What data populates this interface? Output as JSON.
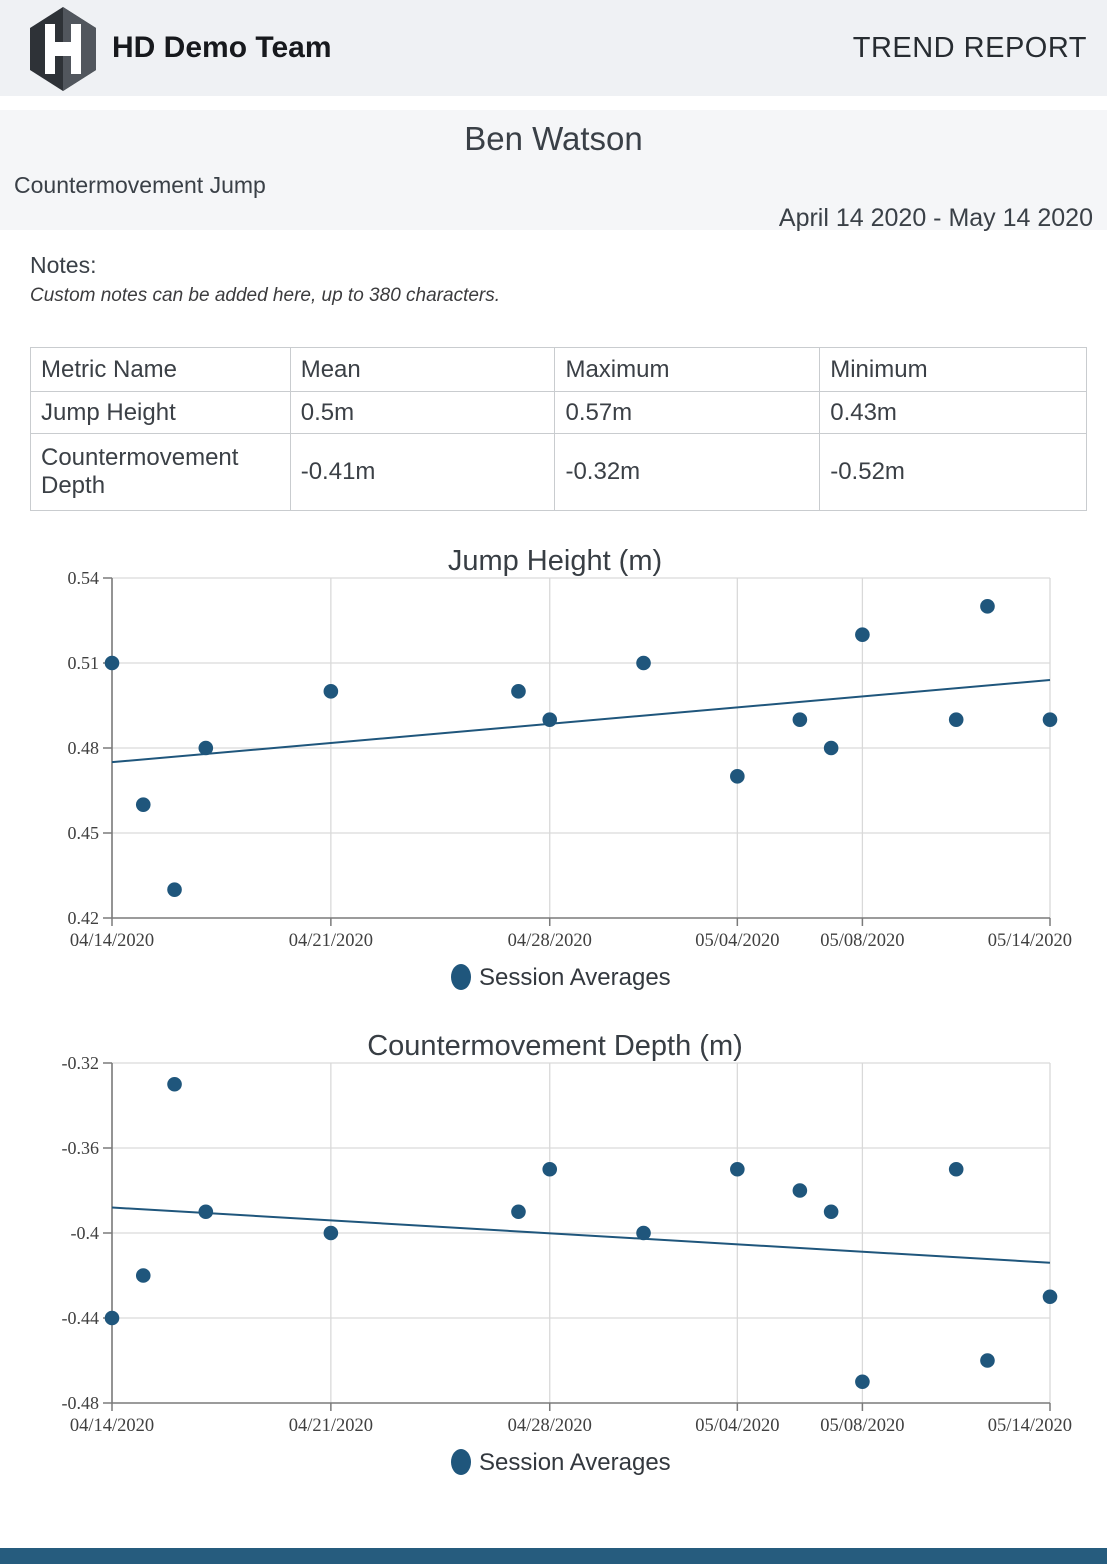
{
  "header": {
    "team_name": "HD Demo Team",
    "report_type": "TREND REPORT"
  },
  "title_block": {
    "athlete_name": "Ben Watson",
    "test_type": "Countermovement Jump",
    "date_range": "April 14 2020 - May 14 2020"
  },
  "notes": {
    "label": "Notes:",
    "text": "Custom notes can be added here, up to 380 characters."
  },
  "metrics_table": {
    "columns": [
      "Metric Name",
      "Mean",
      "Maximum",
      "Minimum"
    ],
    "rows": [
      {
        "metric": "Jump Height",
        "mean": "0.5m",
        "maximum": "0.57m",
        "minimum": "0.43m"
      },
      {
        "metric": "Countermovement Depth",
        "mean": "-0.41m",
        "maximum": "-0.32m",
        "minimum": "-0.52m"
      }
    ]
  },
  "colors": {
    "accent_blue": "#1f567c",
    "gridline": "#d9d9d9",
    "axis": "#7a7a7a",
    "tick_text": "#404040",
    "title_text": "#383e44",
    "footer_bar": "#265c7e"
  },
  "chart_data": [
    {
      "type": "scatter",
      "title": "Jump Height (m)",
      "legend": "Session Averages",
      "x_domain": [
        "04/14/2020",
        "05/14/2020"
      ],
      "x_tick_labels": [
        "04/14/2020",
        "04/21/2020",
        "04/28/2020",
        "05/04/2020",
        "05/08/2020",
        "05/14/2020"
      ],
      "y_tick_labels": [
        "0.54",
        "0.51",
        "0.48",
        "0.45",
        "0.42"
      ],
      "ylim": [
        0.42,
        0.54
      ],
      "grid": true,
      "legend_position": "bottom",
      "x": [
        "04/14/2020",
        "04/15/2020",
        "04/16/2020",
        "04/17/2020",
        "04/21/2020",
        "04/27/2020",
        "04/28/2020",
        "05/01/2020",
        "05/04/2020",
        "05/06/2020",
        "05/07/2020",
        "05/08/2020",
        "05/11/2020",
        "05/12/2020",
        "05/14/2020"
      ],
      "series": [
        {
          "name": "Session Averages",
          "values": [
            0.51,
            0.46,
            0.43,
            0.48,
            0.5,
            0.5,
            0.49,
            0.51,
            0.47,
            0.49,
            0.48,
            0.52,
            0.49,
            0.53,
            0.49
          ]
        }
      ],
      "trend_line": {
        "start": 0.475,
        "end": 0.504
      }
    },
    {
      "type": "scatter",
      "title": "Countermovement Depth (m)",
      "legend": "Session Averages",
      "x_domain": [
        "04/14/2020",
        "05/14/2020"
      ],
      "x_tick_labels": [
        "04/14/2020",
        "04/21/2020",
        "04/28/2020",
        "05/04/2020",
        "05/08/2020",
        "05/14/2020"
      ],
      "y_tick_labels": [
        "-0.32",
        "-0.36",
        "-0.4",
        "-0.44",
        "-0.48"
      ],
      "ylim": [
        -0.48,
        -0.32
      ],
      "grid": true,
      "legend_position": "bottom",
      "x": [
        "04/14/2020",
        "04/15/2020",
        "04/16/2020",
        "04/17/2020",
        "04/21/2020",
        "04/27/2020",
        "04/28/2020",
        "05/01/2020",
        "05/04/2020",
        "05/06/2020",
        "05/07/2020",
        "05/08/2020",
        "05/11/2020",
        "05/12/2020",
        "05/14/2020"
      ],
      "series": [
        {
          "name": "Session Averages",
          "values": [
            -0.44,
            -0.42,
            -0.33,
            -0.39,
            -0.4,
            -0.39,
            -0.37,
            -0.4,
            -0.37,
            -0.38,
            -0.39,
            -0.47,
            -0.37,
            -0.46,
            -0.43
          ]
        }
      ],
      "trend_line": {
        "start": -0.388,
        "end": -0.414
      }
    }
  ]
}
